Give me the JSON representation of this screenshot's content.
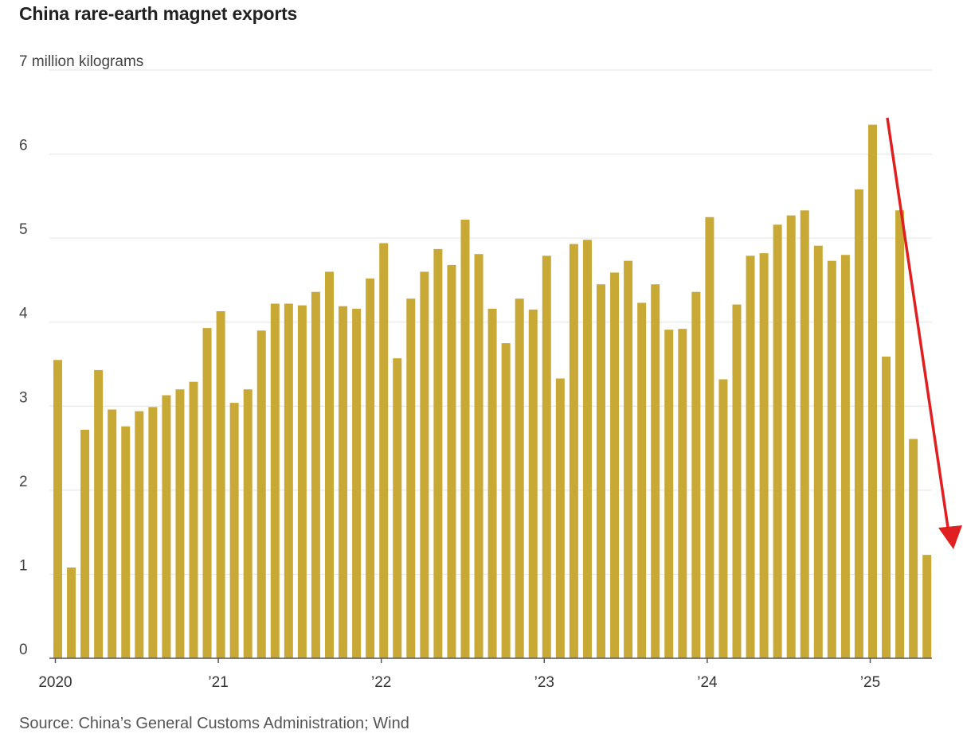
{
  "title": "China rare-earth magnet exports",
  "source": "Source: China’s General Customs Administration; Wind",
  "colors": {
    "bar": "#c9a935",
    "grid": "#e3e3e3",
    "axis": "#555555",
    "arrow": "#e02020"
  },
  "chart_data": {
    "type": "bar",
    "title": "China rare-earth magnet exports",
    "ylabel": "million kilograms",
    "ylim": [
      0,
      7
    ],
    "yticks": [
      0,
      1,
      2,
      3,
      4,
      5,
      6,
      7
    ],
    "ytick_labels": [
      "0",
      "1",
      "2",
      "3",
      "4",
      "5",
      "6",
      "7 million kilograms"
    ],
    "x_year_labels": [
      {
        "label": "2020",
        "index": 0
      },
      {
        "label": "’21",
        "index": 12
      },
      {
        "label": "’22",
        "index": 24
      },
      {
        "label": "’23",
        "index": 36
      },
      {
        "label": "’24",
        "index": 48
      },
      {
        "label": "’25",
        "index": 60
      }
    ],
    "categories": [
      "2020-01",
      "2020-02",
      "2020-03",
      "2020-04",
      "2020-05",
      "2020-06",
      "2020-07",
      "2020-08",
      "2020-09",
      "2020-10",
      "2020-11",
      "2020-12",
      "2021-01",
      "2021-02",
      "2021-03",
      "2021-04",
      "2021-05",
      "2021-06",
      "2021-07",
      "2021-08",
      "2021-09",
      "2021-10",
      "2021-11",
      "2021-12",
      "2022-01",
      "2022-02",
      "2022-03",
      "2022-04",
      "2022-05",
      "2022-06",
      "2022-07",
      "2022-08",
      "2022-09",
      "2022-10",
      "2022-11",
      "2022-12",
      "2023-01",
      "2023-02",
      "2023-03",
      "2023-04",
      "2023-05",
      "2023-06",
      "2023-07",
      "2023-08",
      "2023-09",
      "2023-10",
      "2023-11",
      "2023-12",
      "2024-01",
      "2024-02",
      "2024-03",
      "2024-04",
      "2024-05",
      "2024-06",
      "2024-07",
      "2024-08",
      "2024-09",
      "2024-10",
      "2024-11",
      "2024-12",
      "2025-01",
      "2025-02",
      "2025-03",
      "2025-04",
      "2025-05"
    ],
    "values": [
      3.55,
      1.08,
      2.72,
      3.43,
      2.96,
      2.76,
      2.94,
      2.99,
      3.13,
      3.2,
      3.29,
      3.93,
      4.13,
      3.04,
      3.2,
      3.9,
      4.22,
      4.22,
      4.2,
      4.36,
      4.6,
      4.19,
      4.16,
      4.52,
      4.94,
      3.57,
      4.28,
      4.6,
      4.87,
      4.68,
      5.22,
      4.81,
      4.16,
      3.75,
      4.28,
      4.15,
      4.79,
      3.33,
      4.93,
      4.98,
      4.45,
      4.59,
      4.73,
      4.23,
      4.45,
      3.91,
      3.92,
      4.36,
      5.25,
      3.32,
      4.21,
      4.79,
      4.82,
      5.16,
      5.27,
      5.33,
      4.91,
      4.73,
      4.8,
      5.58,
      6.35,
      3.59,
      5.33,
      2.61,
      1.23
    ],
    "annotations": [
      {
        "type": "arrow",
        "direction": "down",
        "description": "sharp decline in 2025"
      }
    ]
  }
}
